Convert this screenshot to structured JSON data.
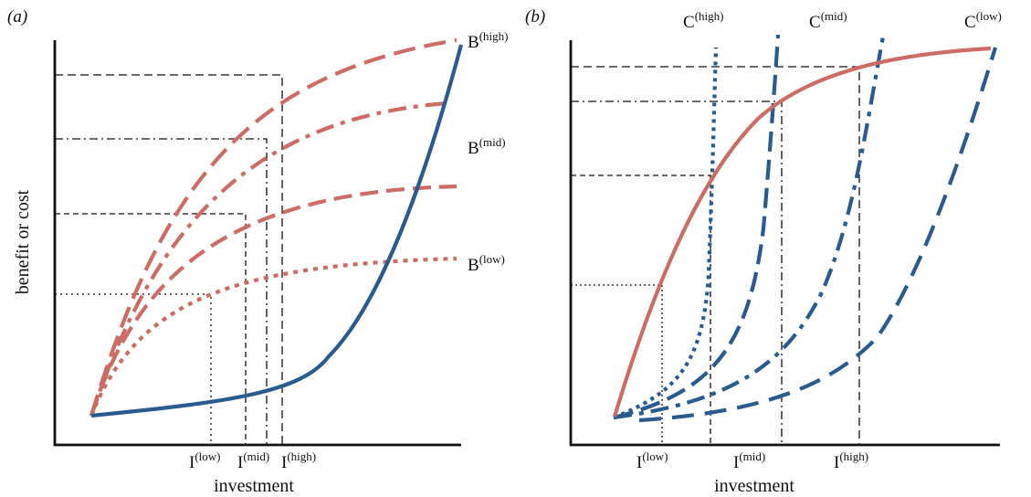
{
  "panels": [
    {
      "id": "a",
      "panel_label": "(a)",
      "ylabel": "benefit or cost",
      "xlabel": "investment",
      "ticks": [
        {
          "base": "I",
          "sup": "(low)"
        },
        {
          "base": "I",
          "sup": "(mid)"
        },
        {
          "base": "I",
          "sup": "(high)"
        }
      ],
      "curve_labels": [
        {
          "base": "B",
          "sup": "(high)"
        },
        {
          "base": "B",
          "sup": "(mid)"
        },
        {
          "base": "B",
          "sup": "(low)"
        }
      ]
    },
    {
      "id": "b",
      "panel_label": "(b)",
      "ylabel": "",
      "xlabel": "investment",
      "ticks": [
        {
          "base": "I",
          "sup": "(low)"
        },
        {
          "base": "I",
          "sup": "(mid)"
        },
        {
          "base": "I",
          "sup": "(high)"
        }
      ],
      "curve_labels": [
        {
          "base": "C",
          "sup": "(high)"
        },
        {
          "base": "C",
          "sup": "(mid)"
        },
        {
          "base": "C",
          "sup": "(low)"
        }
      ]
    }
  ],
  "colors": {
    "benefit": "#cd6b65",
    "cost": "#2a5b8e",
    "axis": "#111111",
    "guide": "#111111"
  }
}
